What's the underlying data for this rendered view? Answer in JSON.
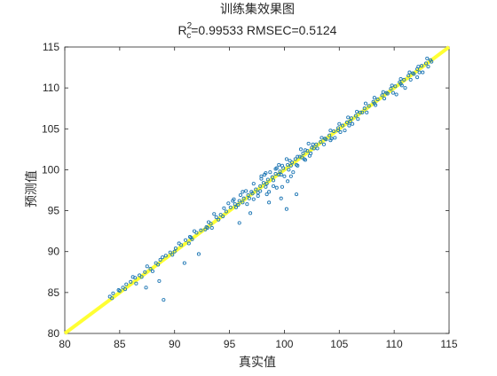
{
  "chart_data": {
    "type": "scatter",
    "title": "训练集效果图",
    "subtitle": {
      "r_label": "R",
      "r_sup": "2",
      "r_sub": "c",
      "text": "=0.99533  RMSEC=0.5124"
    },
    "xlabel": "真实值",
    "ylabel": "预测值",
    "xlim": [
      80,
      115
    ],
    "ylim": [
      80,
      115
    ],
    "xticks": [
      80,
      85,
      90,
      95,
      100,
      105,
      110,
      115
    ],
    "yticks": [
      80,
      85,
      90,
      95,
      100,
      105,
      110,
      115
    ],
    "xtick_labels": [
      "80",
      "85",
      "90",
      "95",
      "100",
      "105",
      "110",
      "115"
    ],
    "ytick_labels": [
      "80",
      "85",
      "90",
      "95",
      "100",
      "105",
      "110",
      "115"
    ],
    "grid": false,
    "legend": null,
    "fit_line": {
      "x": [
        80,
        115
      ],
      "y": [
        80,
        115
      ]
    },
    "series": [
      {
        "points": [
          [
            84.1,
            84.5
          ],
          [
            84.4,
            84.9
          ],
          [
            84.9,
            85.3
          ],
          [
            85.3,
            85.6
          ],
          [
            85.6,
            86.0
          ],
          [
            86.0,
            86.3
          ],
          [
            86.4,
            86.8
          ],
          [
            86.8,
            87.1
          ],
          [
            87.3,
            87.5
          ],
          [
            87.8,
            87.9
          ],
          [
            88.3,
            88.6
          ],
          [
            88.7,
            89.0
          ],
          [
            89.2,
            89.5
          ],
          [
            89.6,
            89.9
          ],
          [
            90.1,
            90.4
          ],
          [
            90.6,
            90.8
          ],
          [
            91.0,
            91.4
          ],
          [
            91.5,
            91.7
          ],
          [
            92.0,
            92.3
          ],
          [
            92.4,
            92.6
          ],
          [
            92.9,
            93.0
          ],
          [
            93.3,
            93.4
          ],
          [
            93.8,
            94.2
          ],
          [
            94.2,
            94.5
          ],
          [
            94.7,
            94.9
          ],
          [
            95.1,
            95.4
          ],
          [
            95.5,
            95.8
          ],
          [
            95.9,
            96.2
          ],
          [
            96.3,
            96.5
          ],
          [
            96.7,
            96.9
          ],
          [
            97.0,
            97.3
          ],
          [
            97.4,
            97.6
          ],
          [
            97.8,
            98.0
          ],
          [
            98.1,
            98.4
          ],
          [
            98.5,
            98.8
          ],
          [
            98.9,
            99.1
          ],
          [
            99.2,
            99.5
          ],
          [
            99.6,
            99.8
          ],
          [
            99.9,
            100.2
          ],
          [
            100.3,
            100.6
          ],
          [
            100.7,
            100.9
          ],
          [
            101.0,
            101.3
          ],
          [
            101.4,
            101.6
          ],
          [
            101.7,
            102.0
          ],
          [
            102.1,
            102.3
          ],
          [
            102.5,
            102.7
          ],
          [
            102.9,
            103.1
          ],
          [
            103.3,
            103.4
          ],
          [
            103.7,
            103.8
          ],
          [
            104.1,
            104.2
          ],
          [
            104.5,
            104.7
          ],
          [
            104.9,
            105.1
          ],
          [
            105.3,
            105.4
          ],
          [
            105.7,
            105.8
          ],
          [
            106.1,
            106.3
          ],
          [
            106.5,
            106.6
          ],
          [
            106.9,
            107.0
          ],
          [
            107.3,
            107.5
          ],
          [
            107.7,
            107.8
          ],
          [
            108.1,
            108.3
          ],
          [
            108.5,
            108.6
          ],
          [
            108.9,
            109.1
          ],
          [
            109.3,
            109.4
          ],
          [
            109.7,
            109.9
          ],
          [
            110.1,
            110.2
          ],
          [
            110.5,
            110.7
          ],
          [
            110.9,
            111.0
          ],
          [
            111.3,
            111.5
          ],
          [
            111.7,
            111.8
          ],
          [
            112.1,
            112.3
          ],
          [
            112.5,
            112.7
          ],
          [
            112.9,
            113.0
          ],
          [
            113.3,
            113.4
          ],
          [
            85.0,
            85.2
          ],
          [
            86.2,
            86.9
          ],
          [
            87.5,
            88.2
          ],
          [
            88.9,
            89.3
          ],
          [
            90.4,
            91.0
          ],
          [
            91.8,
            92.5
          ],
          [
            93.1,
            93.6
          ],
          [
            94.5,
            95.3
          ],
          [
            95.3,
            96.2
          ],
          [
            96.0,
            96.9
          ],
          [
            96.5,
            97.4
          ],
          [
            97.2,
            98.3
          ],
          [
            97.9,
            98.9
          ],
          [
            98.2,
            99.4
          ],
          [
            98.7,
            99.7
          ],
          [
            99.3,
            100.2
          ],
          [
            99.8,
            100.5
          ],
          [
            100.5,
            101.1
          ],
          [
            101.2,
            101.6
          ],
          [
            101.9,
            102.4
          ],
          [
            102.6,
            103.1
          ],
          [
            103.4,
            103.9
          ],
          [
            104.2,
            104.8
          ],
          [
            105.0,
            105.6
          ],
          [
            105.8,
            106.4
          ],
          [
            106.6,
            107.1
          ],
          [
            107.4,
            108.1
          ],
          [
            108.2,
            108.8
          ],
          [
            109.0,
            109.5
          ],
          [
            109.8,
            110.3
          ],
          [
            110.6,
            111.1
          ],
          [
            111.4,
            111.9
          ],
          [
            112.2,
            112.6
          ],
          [
            113.0,
            113.6
          ],
          [
            86.5,
            86.1
          ],
          [
            88.0,
            87.6
          ],
          [
            89.8,
            89.6
          ],
          [
            91.3,
            91.0
          ],
          [
            92.8,
            92.7
          ],
          [
            94.0,
            93.9
          ],
          [
            95.6,
            95.4
          ],
          [
            96.8,
            96.5
          ],
          [
            97.6,
            97.2
          ],
          [
            98.3,
            97.9
          ],
          [
            99.0,
            98.7
          ],
          [
            99.7,
            99.4
          ],
          [
            100.4,
            100.0
          ],
          [
            101.1,
            100.6
          ],
          [
            101.8,
            101.3
          ],
          [
            102.4,
            102.0
          ],
          [
            103.0,
            102.6
          ],
          [
            103.6,
            103.1
          ],
          [
            104.3,
            103.8
          ],
          [
            105.1,
            104.6
          ],
          [
            105.9,
            105.4
          ],
          [
            106.7,
            106.2
          ],
          [
            107.5,
            107.0
          ],
          [
            108.3,
            107.9
          ],
          [
            109.1,
            108.7
          ],
          [
            109.9,
            109.4
          ],
          [
            110.7,
            110.3
          ],
          [
            111.5,
            111.0
          ],
          [
            112.3,
            111.9
          ],
          [
            113.1,
            112.6
          ],
          [
            84.3,
            84.3
          ],
          [
            85.5,
            85.4
          ],
          [
            87.0,
            86.9
          ],
          [
            88.5,
            88.4
          ],
          [
            90.0,
            90.0
          ],
          [
            91.6,
            91.5
          ],
          [
            93.0,
            92.9
          ],
          [
            94.4,
            94.3
          ],
          [
            95.8,
            95.7
          ],
          [
            97.1,
            97.1
          ],
          [
            98.4,
            98.3
          ],
          [
            99.5,
            99.4
          ],
          [
            100.6,
            100.5
          ],
          [
            101.6,
            101.5
          ],
          [
            102.7,
            102.6
          ],
          [
            103.8,
            103.7
          ],
          [
            104.9,
            104.8
          ],
          [
            106.0,
            105.9
          ],
          [
            107.1,
            107.0
          ],
          [
            108.2,
            108.1
          ],
          [
            109.4,
            109.3
          ],
          [
            110.6,
            110.5
          ],
          [
            111.8,
            111.7
          ],
          [
            113.4,
            113.2
          ],
          [
            95.4,
            96.4
          ],
          [
            96.2,
            96.0
          ],
          [
            96.6,
            95.8
          ],
          [
            97.2,
            96.4
          ],
          [
            97.6,
            96.8
          ],
          [
            97.8,
            97.4
          ],
          [
            98.4,
            97.0
          ],
          [
            98.6,
            97.3
          ],
          [
            99.0,
            98.0
          ],
          [
            99.3,
            97.8
          ],
          [
            99.8,
            97.9
          ],
          [
            100.3,
            98.6
          ],
          [
            100.6,
            99.2
          ],
          [
            100.0,
            99.2
          ],
          [
            99.2,
            100.1
          ],
          [
            100.8,
            99.7
          ],
          [
            101.2,
            100.5
          ],
          [
            101.9,
            101.2
          ],
          [
            102.3,
            101.7
          ],
          [
            104.2,
            103.6
          ],
          [
            104.6,
            103.9
          ],
          [
            105.5,
            104.8
          ],
          [
            106.2,
            105.6
          ],
          [
            110.2,
            109.2
          ],
          [
            111.0,
            110.0
          ],
          [
            112.1,
            111.3
          ],
          [
            112.6,
            111.9
          ],
          [
            91.4,
            91.8
          ],
          [
            93.6,
            94.6
          ],
          [
            94.9,
            95.9
          ],
          [
            96.2,
            97.3
          ],
          [
            97.9,
            99.2
          ],
          [
            98.3,
            99.6
          ],
          [
            99.5,
            100.6
          ],
          [
            100.2,
            101.3
          ],
          [
            101.5,
            102.5
          ],
          [
            102.2,
            103.2
          ],
          [
            89.0,
            84.1
          ],
          [
            92.2,
            89.7
          ],
          [
            93.4,
            92.9
          ],
          [
            96.9,
            94.7
          ],
          [
            98.6,
            96.0
          ],
          [
            100.2,
            95.2
          ],
          [
            101.1,
            97.0
          ],
          [
            88.6,
            86.4
          ],
          [
            87.4,
            85.6
          ],
          [
            90.9,
            88.6
          ],
          [
            95.9,
            93.5
          ],
          [
            99.7,
            96.5
          ]
        ]
      }
    ],
    "colors": {
      "markers": "#1f77b4",
      "fit_line": "#ffff33",
      "axes": "#262626",
      "text": "#262626"
    }
  }
}
